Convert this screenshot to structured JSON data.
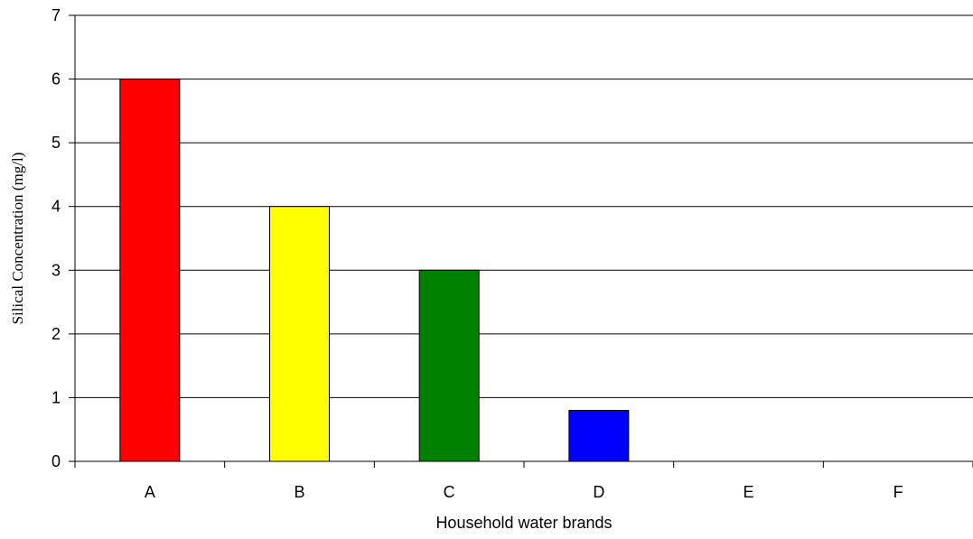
{
  "chart_data": {
    "type": "bar",
    "title": "",
    "xlabel": "Household water brands",
    "ylabel": "Silical Concentration (mg/l)",
    "categories": [
      "A",
      "B",
      "C",
      "D",
      "E",
      "F"
    ],
    "values": [
      6,
      4,
      3,
      0.8,
      0,
      0
    ],
    "bar_colors": [
      "#ff0000",
      "#ffff00",
      "#008000",
      "#0000ff",
      "#0000ff",
      "#0000ff"
    ],
    "ylim": [
      0,
      7
    ],
    "yticks": [
      0,
      1,
      2,
      3,
      4,
      5,
      6,
      7
    ],
    "grid": "horizontal major",
    "legend": "none"
  }
}
